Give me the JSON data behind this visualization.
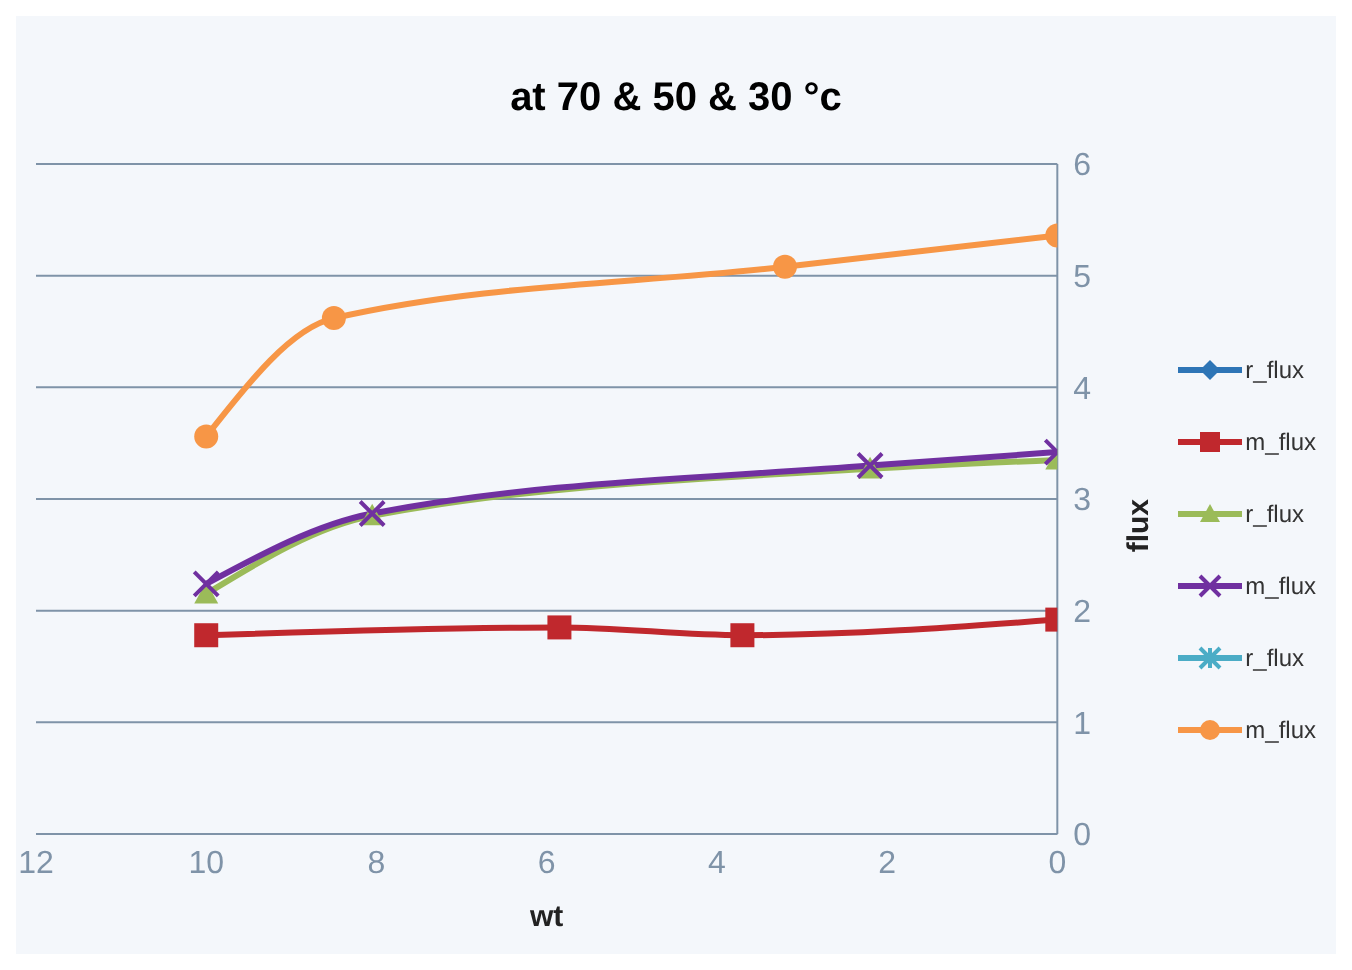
{
  "chart_data": {
    "type": "line",
    "title": "at 70 & 50 & 30 °c",
    "xlabel": "wt",
    "ylabel": "flux",
    "xlim": [
      12,
      0
    ],
    "xticks": [
      12,
      10,
      8,
      6,
      4,
      2,
      0
    ],
    "ylim": [
      0,
      6
    ],
    "yticks": [
      0,
      1,
      2,
      3,
      4,
      5,
      6
    ],
    "grid": "y",
    "legend": "right",
    "series": [
      {
        "name": "r_flux",
        "color": "#2e75b6",
        "marker": "diamond"
      },
      {
        "name": "m_flux",
        "color": "#c0282d",
        "marker": "square",
        "x": [
          10,
          5.85,
          3.7,
          0
        ],
        "values": [
          1.78,
          1.85,
          1.78,
          1.92
        ]
      },
      {
        "name": "r_flux",
        "color": "#9bbb59",
        "marker": "triangle",
        "x": [
          10,
          8.05,
          2.2,
          0
        ],
        "values": [
          2.15,
          2.85,
          3.27,
          3.35
        ]
      },
      {
        "name": "m_flux",
        "color": "#7030a0",
        "marker": "cross",
        "x": [
          10,
          8.05,
          2.2,
          0
        ],
        "values": [
          2.24,
          2.87,
          3.3,
          3.42
        ]
      },
      {
        "name": "r_flux",
        "color": "#4bacc6",
        "marker": "star"
      },
      {
        "name": "m_flux",
        "color": "#f79646",
        "marker": "circle",
        "x": [
          10,
          8.5,
          3.2,
          0
        ],
        "values": [
          3.56,
          4.62,
          5.08,
          5.36
        ]
      }
    ]
  }
}
